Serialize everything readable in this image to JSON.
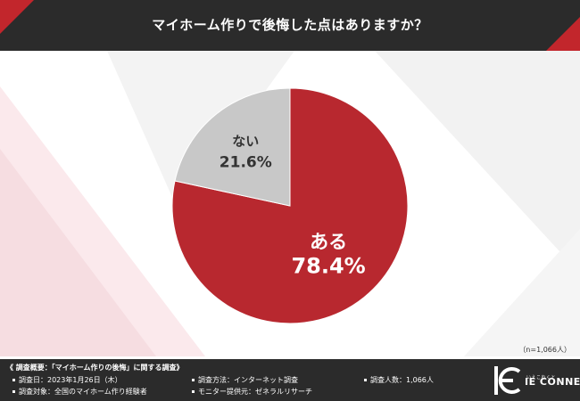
{
  "header": {
    "title": "マイホーム作りで後悔した点はありますか？"
  },
  "chart_data": {
    "type": "pie",
    "title": "マイホーム作りで後悔した点はありますか？",
    "slices": [
      {
        "label": "ある",
        "value": 78.4,
        "value_label": "78.4%",
        "color": "#b8282f"
      },
      {
        "label": "ない",
        "value": 21.6,
        "value_label": "21.6%",
        "color": "#c8c8c8"
      }
    ],
    "start": "12 o'clock",
    "direction": "clockwise",
    "legend": "none",
    "note": "（n=1,066人）"
  },
  "footer": {
    "heading": "《 調査概要：「マイホーム作りの後悔」に関する調査》",
    "items": [
      "調査日：2023年1月26日（木）",
      "調査方法：インターネット調査",
      "調査人数：1,066人",
      "調査対象：全国のマイホーム作り経験者",
      "モニター提供元：ゼネラルリサーチ"
    ],
    "logo": {
      "small": "いえこねくと",
      "big": "IE CONNECT"
    }
  }
}
